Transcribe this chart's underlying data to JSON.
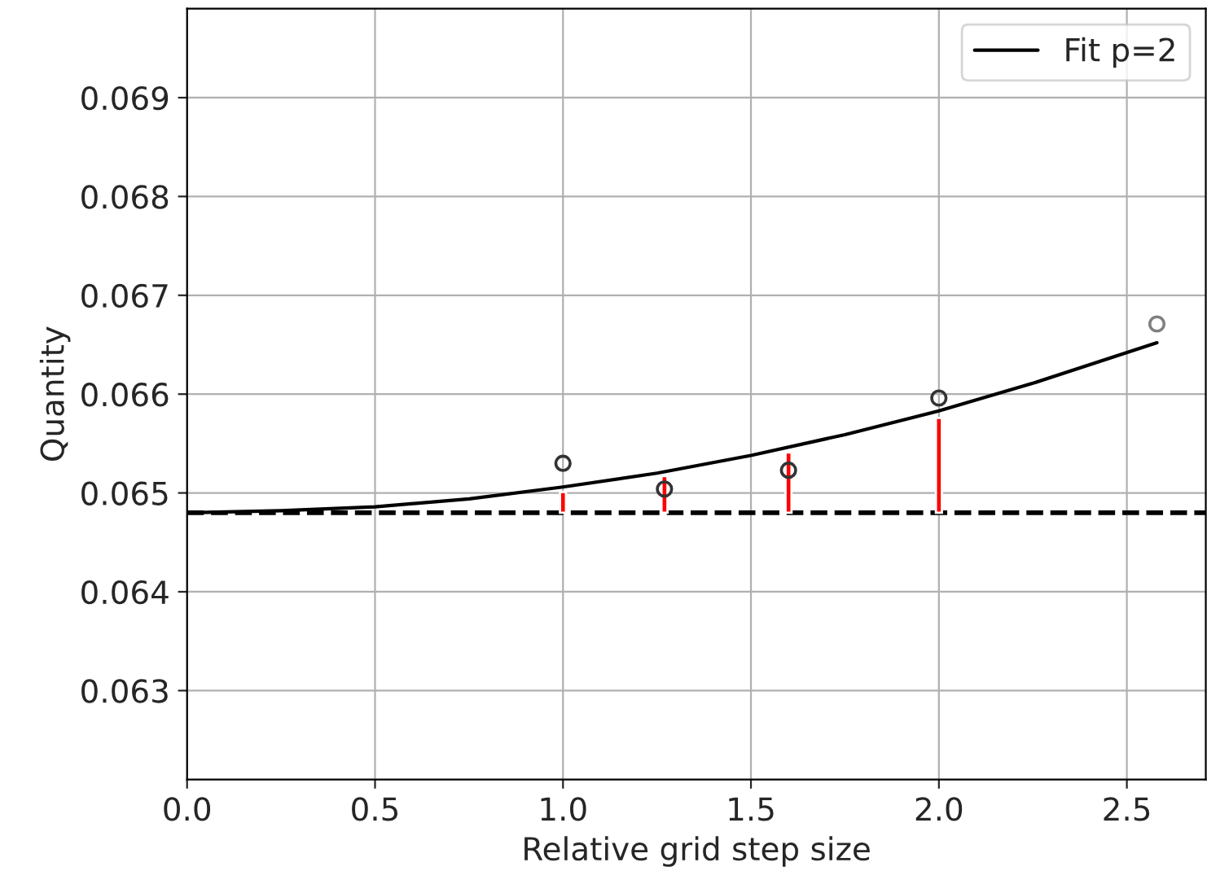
{
  "chart_data": {
    "type": "scatter",
    "xlabel": "Relative grid step size",
    "ylabel": "Quantity",
    "xlim": [
      0,
      2.71
    ],
    "ylim": [
      0.0621,
      0.0699
    ],
    "xticks": [
      {
        "value": 0,
        "label": "0.0"
      },
      {
        "value": 0.5,
        "label": "0.5"
      },
      {
        "value": 1,
        "label": "1.0"
      },
      {
        "value": 1.5,
        "label": "1.5"
      },
      {
        "value": 2,
        "label": "2.0"
      },
      {
        "value": 2.5,
        "label": "2.5"
      }
    ],
    "yticks": [
      0.063,
      0.064,
      0.065,
      0.066,
      0.067,
      0.068,
      0.069
    ],
    "grid": true,
    "legend": "top right",
    "marker": "circle",
    "ref_lines": [
      {
        "axis": "y",
        "value": 0.0648,
        "color": "#000000",
        "line_style": "dashed"
      }
    ],
    "series": [
      {
        "type": "bar",
        "color": "#ff0000",
        "x": [
          1.0,
          1.27,
          1.6,
          2.0
        ],
        "values": [
          0.00021,
          0.00037,
          0.00061,
          0.00096
        ],
        "base": [
          0.0648,
          0.0648,
          0.0648,
          0.0648
        ]
      },
      {
        "type": "line",
        "name": "Fit p=2",
        "color": "#000000",
        "marker": "none",
        "x": [
          0,
          0.25,
          0.5,
          0.75,
          1.0,
          1.25,
          1.5,
          1.75,
          2.0,
          2.25,
          2.58
        ],
        "values": [
          0.0648,
          0.06482,
          0.06486,
          0.06494,
          0.06506,
          0.0652,
          0.06538,
          0.06559,
          0.06583,
          0.06611,
          0.06652
        ]
      },
      {
        "color": "#333333",
        "x": [
          1.0,
          1.27,
          1.6,
          2.0
        ],
        "values": [
          0.0653,
          0.06504,
          0.06523,
          0.06596
        ]
      },
      {
        "color": "#808080",
        "x": [
          2.58
        ],
        "values": [
          0.06671
        ]
      }
    ]
  }
}
